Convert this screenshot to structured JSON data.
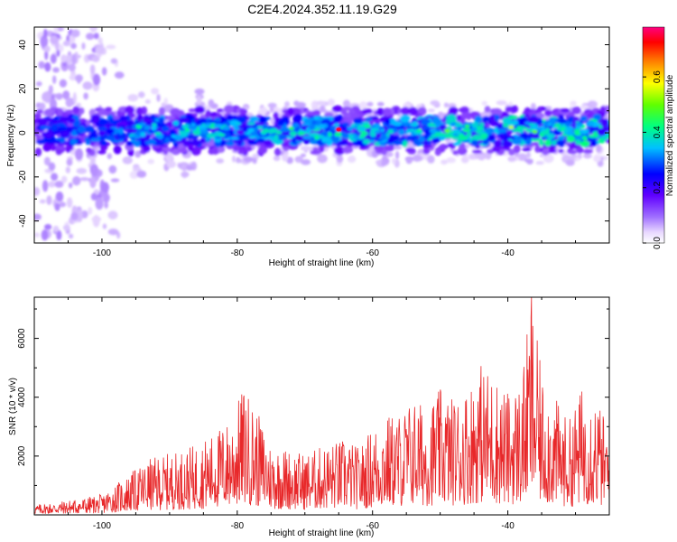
{
  "title": "C2E4.2024.352.11.19.G29",
  "chart_data": [
    {
      "type": "heatmap",
      "xlabel": "Height of straight line (km)",
      "ylabel": "Frequency (Hz)",
      "xlim": [
        -110,
        -25
      ],
      "ylim": [
        -50,
        48
      ],
      "x_ticks": [
        -100,
        -80,
        -60,
        -40
      ],
      "x_tick_labels": [
        "-100",
        "-80",
        "-60",
        "-40"
      ],
      "y_ticks": [
        -40,
        -20,
        0,
        20,
        40
      ],
      "y_tick_labels": [
        "-40",
        "-20",
        "0",
        "20",
        "40"
      ],
      "band_center_hz": 1,
      "band_halfwidth_hz": 6,
      "peak_amplitude": 0.75,
      "peak_location": {
        "x": -65,
        "y": 1.5
      },
      "colorbar": {
        "label": "Normalized spectral amplitude",
        "range": [
          0.0,
          0.78
        ],
        "ticks": [
          0.0,
          0.2,
          0.4,
          0.6
        ],
        "tick_labels": [
          "0.0",
          "0.2",
          "0.4",
          "0.6"
        ],
        "colors": [
          "#ffffff",
          "#a070ff",
          "#6000ff",
          "#0000ff",
          "#00c0ff",
          "#00ff80",
          "#60ff00",
          "#ffff00",
          "#ff8000",
          "#ff0000",
          "#ff0080"
        ]
      }
    },
    {
      "type": "line",
      "xlabel": "Height of straight line (km)",
      "ylabel": "SNR (10 * v/v)",
      "xlim": [
        -110,
        -25
      ],
      "ylim": [
        0,
        7400
      ],
      "x_ticks": [
        -100,
        -80,
        -60,
        -40
      ],
      "x_tick_labels": [
        "-100",
        "-80",
        "-60",
        "-40"
      ],
      "y_ticks": [
        2000,
        4000,
        6000
      ],
      "y_tick_labels": [
        "2000",
        "4000",
        "6000"
      ],
      "color": "#e8282a",
      "envelope": {
        "x": [
          -110,
          -105,
          -100,
          -96,
          -93,
          -90,
          -87,
          -84,
          -81,
          -79,
          -77,
          -75,
          -73,
          -70,
          -67,
          -64,
          -62,
          -60,
          -58,
          -56,
          -54,
          -52,
          -50,
          -48,
          -46,
          -44,
          -42,
          -40,
          -38,
          -36.5,
          -35,
          -33,
          -31,
          -29,
          -27,
          -25
        ],
        "y": [
          350,
          500,
          700,
          1400,
          1900,
          2100,
          2300,
          2700,
          3300,
          4400,
          3500,
          2400,
          2300,
          2100,
          2400,
          2600,
          2300,
          3000,
          3400,
          3500,
          4000,
          3700,
          4300,
          4000,
          4400,
          5200,
          4800,
          4200,
          4600,
          7400,
          4800,
          4000,
          3200,
          4400,
          4200,
          2800
        ]
      }
    }
  ]
}
